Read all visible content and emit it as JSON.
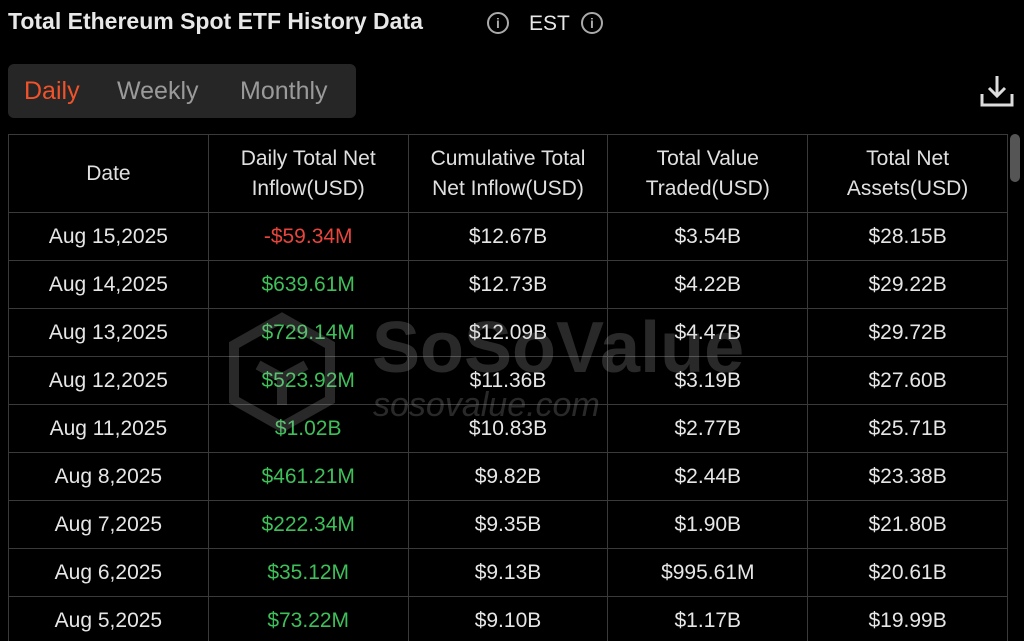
{
  "header": {
    "title": "Total Ethereum Spot ETF History Data",
    "timezone": "EST"
  },
  "tabs": [
    "Daily",
    "Weekly",
    "Monthly"
  ],
  "table": {
    "headers": [
      [
        "Date"
      ],
      [
        "Daily Total Net",
        "Inflow(USD)"
      ],
      [
        "Cumulative Total",
        "Net Inflow(USD)"
      ],
      [
        "Total Value",
        "Traded(USD)"
      ],
      [
        "Total Net",
        "Assets(USD)"
      ]
    ],
    "rows": [
      [
        "Aug 15,2025",
        "-$59.34M",
        "$12.67B",
        "$3.54B",
        "$28.15B"
      ],
      [
        "Aug 14,2025",
        "$639.61M",
        "$12.73B",
        "$4.22B",
        "$29.22B"
      ],
      [
        "Aug 13,2025",
        "$729.14M",
        "$12.09B",
        "$4.47B",
        "$29.72B"
      ],
      [
        "Aug 12,2025",
        "$523.92M",
        "$11.36B",
        "$3.19B",
        "$27.60B"
      ],
      [
        "Aug 11,2025",
        "$1.02B",
        "$10.83B",
        "$2.77B",
        "$25.71B"
      ],
      [
        "Aug 8,2025",
        "$461.21M",
        "$9.82B",
        "$2.44B",
        "$23.38B"
      ],
      [
        "Aug 7,2025",
        "$222.34M",
        "$9.35B",
        "$1.90B",
        "$21.80B"
      ],
      [
        "Aug 6,2025",
        "$35.12M",
        "$9.13B",
        "$995.61M",
        "$20.61B"
      ],
      [
        "Aug 5,2025",
        "$73.22M",
        "$9.10B",
        "$1.17B",
        "$19.99B"
      ]
    ]
  },
  "watermark": {
    "brand": "SoSoValue",
    "site": "sosovalue.com"
  }
}
